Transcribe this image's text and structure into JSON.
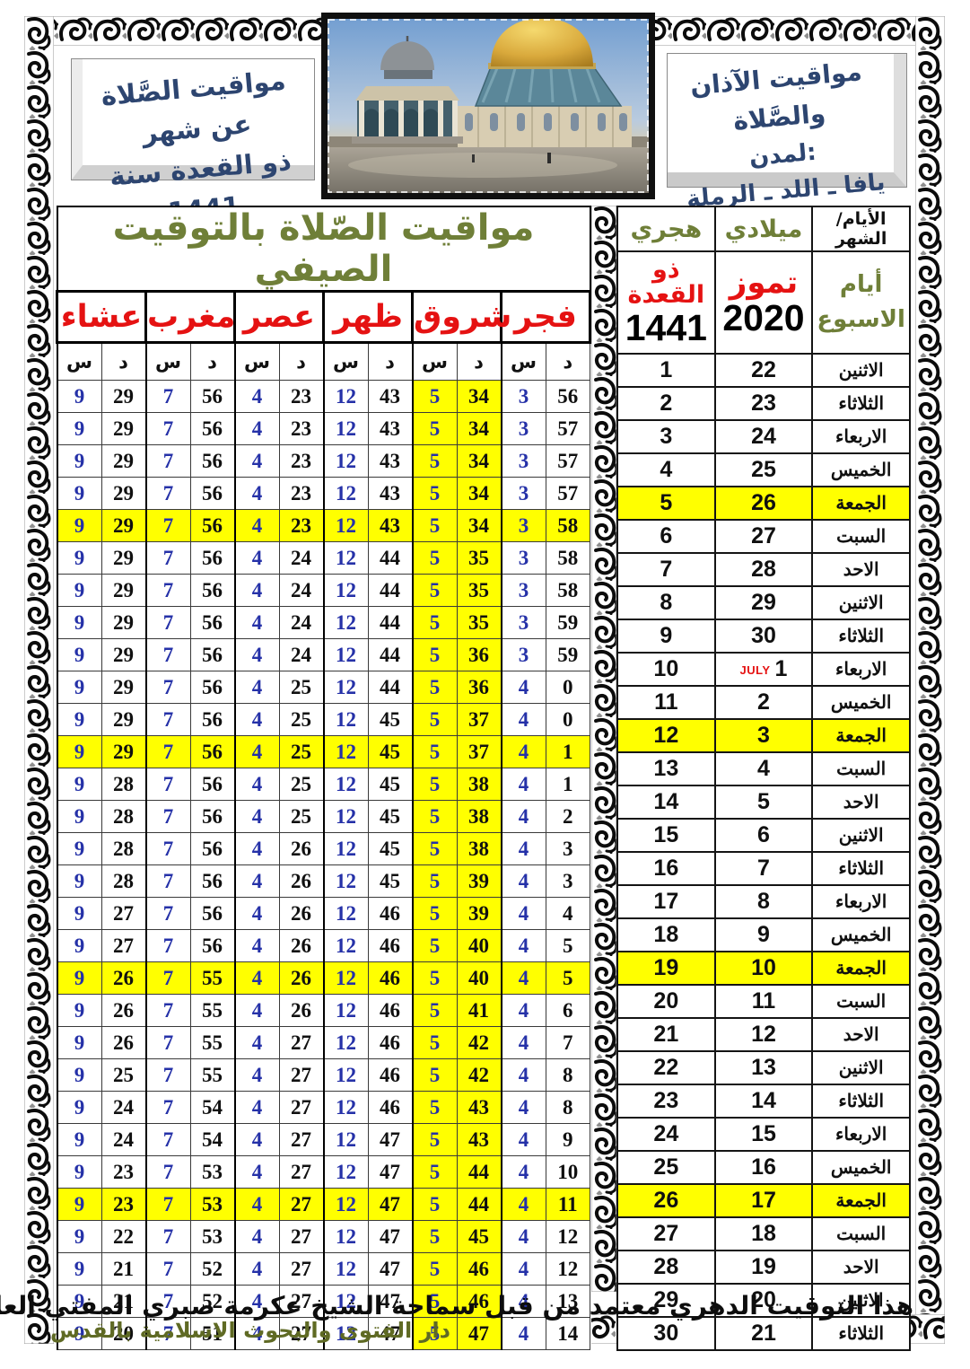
{
  "header": {
    "left_box": {
      "line1": "مواقيت الصَّلاة عن شهر",
      "line2": "ذو القعدة سنة 1441"
    },
    "right_box": {
      "line1": "مواقيت الآذان والصَّلاة",
      "line2": "لمدن:",
      "line3": "يافا ـ اللد ـ الرملة"
    }
  },
  "prayer_table": {
    "title": "مواقيت الصّلاة بالتوقيت الصيفي",
    "columns_ltr": [
      "عشاء",
      "مغرب",
      "عصر",
      "ظهر",
      "شروق",
      "فجر"
    ],
    "hour_label": "س",
    "minute_label": "د",
    "rows": [
      [
        9,
        29,
        7,
        56,
        4,
        23,
        12,
        43,
        5,
        34,
        3,
        56
      ],
      [
        9,
        29,
        7,
        56,
        4,
        23,
        12,
        43,
        5,
        34,
        3,
        57
      ],
      [
        9,
        29,
        7,
        56,
        4,
        23,
        12,
        43,
        5,
        34,
        3,
        57
      ],
      [
        9,
        29,
        7,
        56,
        4,
        23,
        12,
        43,
        5,
        34,
        3,
        57
      ],
      [
        9,
        29,
        7,
        56,
        4,
        23,
        12,
        43,
        5,
        34,
        3,
        58
      ],
      [
        9,
        29,
        7,
        56,
        4,
        24,
        12,
        44,
        5,
        35,
        3,
        58
      ],
      [
        9,
        29,
        7,
        56,
        4,
        24,
        12,
        44,
        5,
        35,
        3,
        58
      ],
      [
        9,
        29,
        7,
        56,
        4,
        24,
        12,
        44,
        5,
        35,
        3,
        59
      ],
      [
        9,
        29,
        7,
        56,
        4,
        24,
        12,
        44,
        5,
        36,
        3,
        59
      ],
      [
        9,
        29,
        7,
        56,
        4,
        25,
        12,
        44,
        5,
        36,
        4,
        0
      ],
      [
        9,
        29,
        7,
        56,
        4,
        25,
        12,
        45,
        5,
        37,
        4,
        0
      ],
      [
        9,
        29,
        7,
        56,
        4,
        25,
        12,
        45,
        5,
        37,
        4,
        1
      ],
      [
        9,
        28,
        7,
        56,
        4,
        25,
        12,
        45,
        5,
        38,
        4,
        1
      ],
      [
        9,
        28,
        7,
        56,
        4,
        25,
        12,
        45,
        5,
        38,
        4,
        2
      ],
      [
        9,
        28,
        7,
        56,
        4,
        26,
        12,
        45,
        5,
        38,
        4,
        3
      ],
      [
        9,
        28,
        7,
        56,
        4,
        26,
        12,
        45,
        5,
        39,
        4,
        3
      ],
      [
        9,
        27,
        7,
        56,
        4,
        26,
        12,
        46,
        5,
        39,
        4,
        4
      ],
      [
        9,
        27,
        7,
        56,
        4,
        26,
        12,
        46,
        5,
        40,
        4,
        5
      ],
      [
        9,
        26,
        7,
        55,
        4,
        26,
        12,
        46,
        5,
        40,
        4,
        5
      ],
      [
        9,
        26,
        7,
        55,
        4,
        26,
        12,
        46,
        5,
        41,
        4,
        6
      ],
      [
        9,
        26,
        7,
        55,
        4,
        27,
        12,
        46,
        5,
        42,
        4,
        7
      ],
      [
        9,
        25,
        7,
        55,
        4,
        27,
        12,
        46,
        5,
        42,
        4,
        8
      ],
      [
        9,
        24,
        7,
        54,
        4,
        27,
        12,
        46,
        5,
        43,
        4,
        8
      ],
      [
        9,
        24,
        7,
        54,
        4,
        27,
        12,
        47,
        5,
        43,
        4,
        9
      ],
      [
        9,
        23,
        7,
        53,
        4,
        27,
        12,
        47,
        5,
        44,
        4,
        10
      ],
      [
        9,
        23,
        7,
        53,
        4,
        27,
        12,
        47,
        5,
        44,
        4,
        11
      ],
      [
        9,
        22,
        7,
        53,
        4,
        27,
        12,
        47,
        5,
        45,
        4,
        12
      ],
      [
        9,
        21,
        7,
        52,
        4,
        27,
        12,
        47,
        5,
        46,
        4,
        12
      ],
      [
        9,
        21,
        7,
        52,
        4,
        27,
        12,
        47,
        5,
        46,
        4,
        13
      ],
      [
        9,
        20,
        7,
        51,
        4,
        27,
        12,
        47,
        5,
        47,
        4,
        14
      ]
    ]
  },
  "date_table": {
    "hijri_header": "هجري",
    "gregorian_header": "ميلادي",
    "days_header": "الأيام/الشهر",
    "hijri_month": "ذو القعدة",
    "hijri_year": "1441",
    "gregorian_month": "تموز",
    "gregorian_year": "2020",
    "week_days_label_line1": "أيام",
    "week_days_label_line2": "الاسبوع",
    "friday_name": "الجمعة",
    "rows": [
      {
        "hijri": "1",
        "greg": "22",
        "weekday": "الاثنين"
      },
      {
        "hijri": "2",
        "greg": "23",
        "weekday": "الثلاثاء"
      },
      {
        "hijri": "3",
        "greg": "24",
        "weekday": "الاربعاء"
      },
      {
        "hijri": "4",
        "greg": "25",
        "weekday": "الخميس"
      },
      {
        "hijri": "5",
        "greg": "26",
        "weekday": "الجمعة"
      },
      {
        "hijri": "6",
        "greg": "27",
        "weekday": "السبت"
      },
      {
        "hijri": "7",
        "greg": "28",
        "weekday": "الاحد"
      },
      {
        "hijri": "8",
        "greg": "29",
        "weekday": "الاثنين"
      },
      {
        "hijri": "9",
        "greg": "30",
        "weekday": "الثلاثاء"
      },
      {
        "hijri": "10",
        "greg": "1",
        "greg_prefix": "JULY",
        "weekday": "الاربعاء"
      },
      {
        "hijri": "11",
        "greg": "2",
        "weekday": "الخميس"
      },
      {
        "hijri": "12",
        "greg": "3",
        "weekday": "الجمعة"
      },
      {
        "hijri": "13",
        "greg": "4",
        "weekday": "السبت"
      },
      {
        "hijri": "14",
        "greg": "5",
        "weekday": "الاحد"
      },
      {
        "hijri": "15",
        "greg": "6",
        "weekday": "الاثنين"
      },
      {
        "hijri": "16",
        "greg": "7",
        "weekday": "الثلاثاء"
      },
      {
        "hijri": "17",
        "greg": "8",
        "weekday": "الاربعاء"
      },
      {
        "hijri": "18",
        "greg": "9",
        "weekday": "الخميس"
      },
      {
        "hijri": "19",
        "greg": "10",
        "weekday": "الجمعة"
      },
      {
        "hijri": "20",
        "greg": "11",
        "weekday": "السبت"
      },
      {
        "hijri": "21",
        "greg": "12",
        "weekday": "الاحد"
      },
      {
        "hijri": "22",
        "greg": "13",
        "weekday": "الاثنين"
      },
      {
        "hijri": "23",
        "greg": "14",
        "weekday": "الثلاثاء"
      },
      {
        "hijri": "24",
        "greg": "15",
        "weekday": "الاربعاء"
      },
      {
        "hijri": "25",
        "greg": "16",
        "weekday": "الخميس"
      },
      {
        "hijri": "26",
        "greg": "17",
        "weekday": "الجمعة"
      },
      {
        "hijri": "27",
        "greg": "18",
        "weekday": "السبت"
      },
      {
        "hijri": "28",
        "greg": "19",
        "weekday": "الاحد"
      },
      {
        "hijri": "29",
        "greg": "20",
        "weekday": "الاثنين"
      },
      {
        "hijri": "30",
        "greg": "21",
        "weekday": "الثلاثاء"
      }
    ]
  },
  "footer": {
    "approval_line": "هذا التوقيت الدهري معتمد من قبل سماحة الشيخ عكرمة صبري المفتي العام للقدس والديار المقدسة",
    "org_line": "دار الفتوى والبحوث الاسلامية بالقدس"
  },
  "colors": {
    "navy": "#2d4570",
    "red": "#e51212",
    "olive": "#6f7f38",
    "footer_green": "#5f6a24",
    "hour_blue": "#2531a8",
    "highlight_yellow": "#ffff00"
  }
}
